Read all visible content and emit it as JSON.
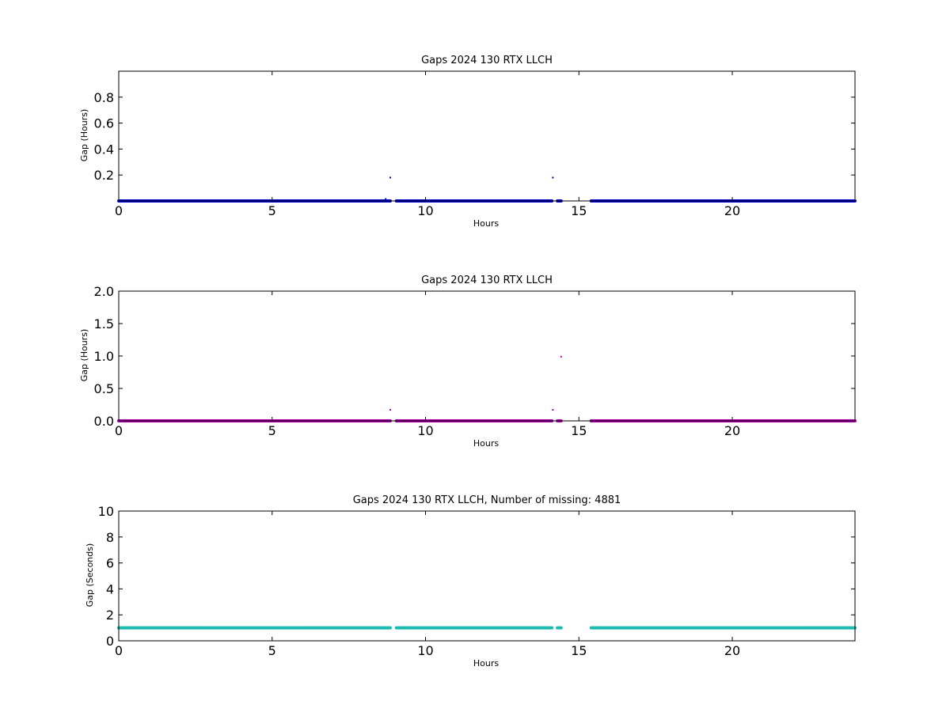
{
  "chart_data": [
    {
      "type": "scatter",
      "title": "Gaps 2024 130 RTX  LLCH",
      "xlabel": "Hours",
      "ylabel": "Gap (Hours)",
      "xlim": [
        0,
        24
      ],
      "ylim": [
        0,
        1
      ],
      "xticks": [
        0,
        5,
        10,
        15,
        20
      ],
      "yticks": [
        0.2,
        0.4,
        0.6,
        0.8
      ],
      "grid": false,
      "color": "#0000cc",
      "segments": [
        [
          0,
          8.85
        ],
        [
          9.05,
          14.12
        ],
        [
          14.3,
          14.42
        ],
        [
          15.4,
          24
        ]
      ],
      "segment_value": 0,
      "points": [
        {
          "x": 8.85,
          "y": 0.18
        },
        {
          "x": 14.15,
          "y": 0.18
        },
        {
          "x": 8.7,
          "y": 0.015
        }
      ]
    },
    {
      "type": "scatter",
      "title": "Gaps 2024 130 RTX  LLCH",
      "xlabel": "Hours",
      "ylabel": "Gap (Hours)",
      "xlim": [
        0,
        24
      ],
      "ylim": [
        0,
        2
      ],
      "xticks": [
        0,
        5,
        10,
        15,
        20
      ],
      "yticks": [
        0.0,
        0.5,
        1.0,
        1.5,
        2.0
      ],
      "grid": false,
      "color": "#aa00aa",
      "segments": [
        [
          0,
          8.85
        ],
        [
          9.05,
          14.12
        ],
        [
          14.3,
          14.42
        ],
        [
          15.4,
          24
        ]
      ],
      "segment_value": 0,
      "points": [
        {
          "x": 8.85,
          "y": 0.17
        },
        {
          "x": 14.15,
          "y": 0.17
        },
        {
          "x": 14.42,
          "y": 0.99
        }
      ]
    },
    {
      "type": "scatter",
      "title": "Gaps 2024 130 RTX  LLCH, Number of missing: 4881",
      "xlabel": "Hours",
      "ylabel": "Gap (Seconds)",
      "xlim": [
        0,
        24
      ],
      "ylim": [
        0,
        10
      ],
      "xticks": [
        0,
        5,
        10,
        15,
        20
      ],
      "yticks": [
        0,
        2,
        4,
        6,
        8,
        10
      ],
      "grid": false,
      "color": "#1abab0",
      "segments": [
        [
          0,
          8.85
        ],
        [
          9.05,
          14.12
        ],
        [
          14.3,
          14.42
        ],
        [
          15.4,
          24
        ]
      ],
      "segment_value": 1,
      "points": []
    }
  ]
}
